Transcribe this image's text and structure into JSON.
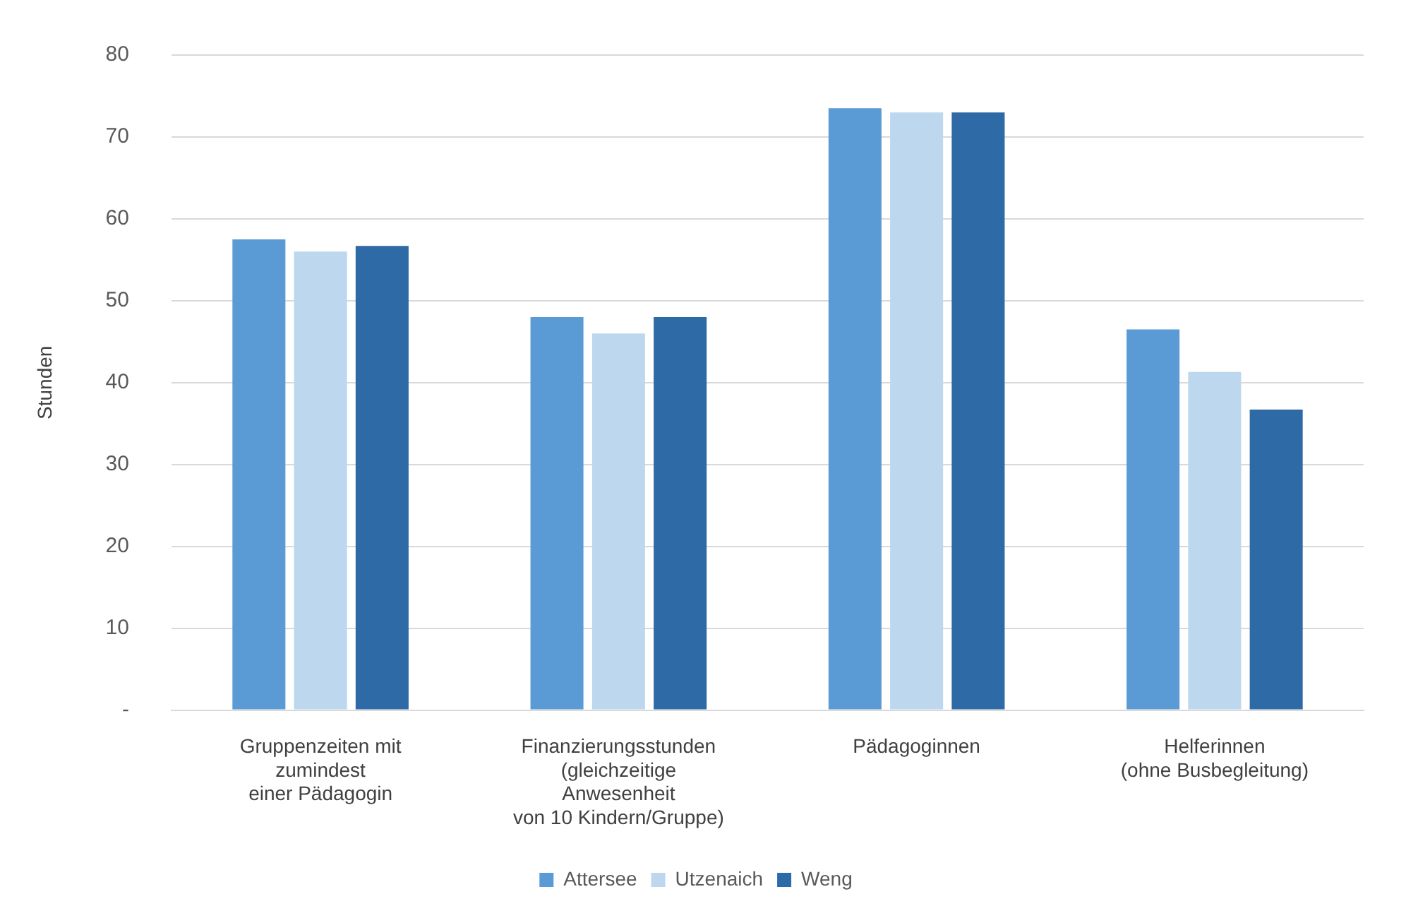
{
  "chart_data": {
    "type": "bar",
    "categories": [
      "Gruppenzeiten mit\nzumindest\neiner Pädagogin",
      "Finanzierungsstunden\n(gleichzeitige\nAnwesenheit\nvon 10 Kindern/Gruppe)",
      "Pädagoginnen",
      "Helferinnen\n(ohne Busbegleitung)"
    ],
    "series": [
      {
        "name": "Attersee",
        "color": "#5b9bd5",
        "values": [
          57.5,
          48,
          73.5,
          46.5
        ]
      },
      {
        "name": "Utzenaich",
        "color": "#bdd7ee",
        "values": [
          56,
          46,
          73,
          41.3
        ]
      },
      {
        "name": "Weng",
        "color": "#2e6aa5",
        "values": [
          56.7,
          48,
          73,
          36.7
        ]
      }
    ],
    "ylabel": "Stunden",
    "ylim": [
      0,
      80
    ],
    "yticks": [
      {
        "value": 0,
        "label": "-"
      },
      10,
      20,
      30,
      40,
      50,
      60,
      70,
      80
    ],
    "grid": "y",
    "legend": "bottom"
  }
}
